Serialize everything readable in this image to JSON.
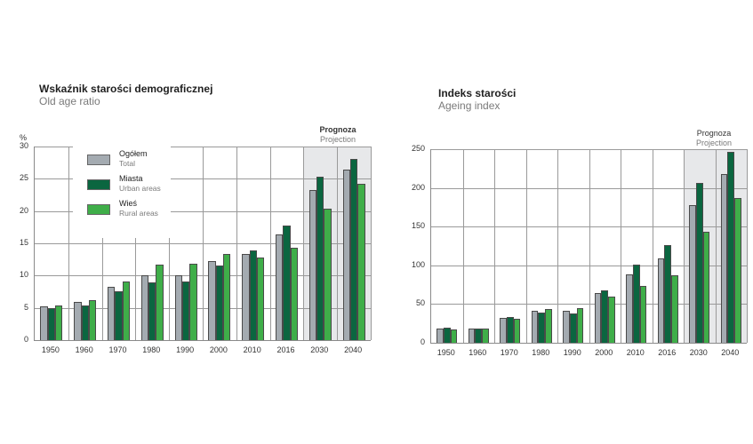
{
  "colors": {
    "total": "#a4abb1",
    "urban": "#0b6640",
    "rural": "#3fae49",
    "projection_bg": "#e7e8ea"
  },
  "legend": {
    "items": [
      {
        "key": "total",
        "label_pl": "Ogółem",
        "label_en": "Total"
      },
      {
        "key": "urban",
        "label_pl": "Miasta",
        "label_en": "Urban areas"
      },
      {
        "key": "rural",
        "label_pl": "Wieś",
        "label_en": "Rural areas"
      }
    ]
  },
  "projection": {
    "label_pl": "Prognoza",
    "label_en": "Projection"
  },
  "chart_data": [
    {
      "type": "bar",
      "title": "Wskaźnik starości demograficznej",
      "subtitle": "Old age ratio",
      "xlabel": "",
      "ylabel": "%",
      "ylim": [
        0,
        30
      ],
      "yticks": [
        0,
        5,
        10,
        15,
        20,
        25,
        30
      ],
      "grid": true,
      "legend_position": "upper-left inside plot",
      "categories": [
        "1950",
        "1960",
        "1970",
        "1980",
        "1990",
        "2000",
        "2010",
        "2016",
        "2030",
        "2040"
      ],
      "projection_categories": [
        "2030",
        "2040"
      ],
      "series": [
        {
          "name": "Ogółem / Total",
          "key": "total",
          "values": [
            5.2,
            5.9,
            8.3,
            10.0,
            10.1,
            12.3,
            13.4,
            16.4,
            23.3,
            26.4
          ]
        },
        {
          "name": "Miasta / Urban areas",
          "key": "urban",
          "values": [
            5.0,
            5.4,
            7.6,
            8.9,
            9.1,
            11.6,
            13.9,
            17.8,
            25.3,
            28.1
          ]
        },
        {
          "name": "Wieś / Rural areas",
          "key": "rural",
          "values": [
            5.4,
            6.2,
            9.1,
            11.7,
            11.9,
            13.3,
            12.8,
            14.3,
            20.4,
            24.2
          ]
        }
      ]
    },
    {
      "type": "bar",
      "title": "Indeks starości",
      "subtitle": "Ageing index",
      "xlabel": "",
      "ylabel": "",
      "ylim": [
        0,
        250
      ],
      "yticks": [
        0,
        50,
        100,
        150,
        200,
        250
      ],
      "grid": true,
      "categories": [
        "1950",
        "1960",
        "1970",
        "1980",
        "1990",
        "2000",
        "2010",
        "2016",
        "2030",
        "2040"
      ],
      "projection_categories": [
        "2030",
        "2040"
      ],
      "series": [
        {
          "name": "Ogółem / Total",
          "key": "total",
          "values": [
            18,
            18,
            32,
            41,
            41,
            64,
            88,
            109,
            178,
            218
          ]
        },
        {
          "name": "Miasta / Urban areas",
          "key": "urban",
          "values": [
            19,
            18,
            33,
            39,
            38,
            68,
            101,
            126,
            206,
            247
          ]
        },
        {
          "name": "Wieś / Rural areas",
          "key": "rural",
          "values": [
            17,
            18,
            31,
            44,
            45,
            60,
            73,
            87,
            143,
            187
          ]
        }
      ]
    }
  ]
}
